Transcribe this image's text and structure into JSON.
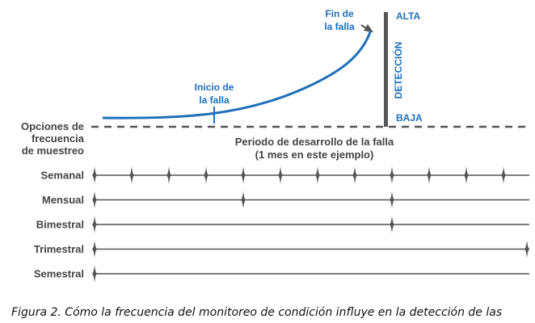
{
  "diagram": {
    "curve_labels": {
      "start": [
        "Inicio de",
        "la falla"
      ],
      "end": [
        "Fin de",
        "la falla"
      ]
    },
    "detection": {
      "axis_label": "DETECCIÓN",
      "high": "ALTA",
      "low": "BAJA"
    },
    "sampling_header": [
      "Opciones de",
      "frecuencia",
      "de muestreo"
    ],
    "period_label": [
      "Periodo de desarrollo de la falla",
      "(1 mes en este ejemplo)"
    ],
    "rows": [
      {
        "label": "Semanal",
        "marks": [
          0,
          1,
          2,
          3,
          4,
          5,
          6,
          7,
          8,
          9,
          10,
          11
        ]
      },
      {
        "label": "Mensual",
        "marks": [
          0,
          4,
          8
        ]
      },
      {
        "label": "Bimestral",
        "marks": [
          0,
          8
        ]
      },
      {
        "label": "Trimestral",
        "marks": [
          0,
          12
        ]
      },
      {
        "label": "Semestral",
        "marks": [
          0
        ]
      }
    ],
    "colors": {
      "accent": "#1f6fb8",
      "dark": "#555555",
      "text": "#444444"
    }
  },
  "caption": "Figura 2. Cómo la frecuencia del monitoreo de condición influye en la detección de las"
}
